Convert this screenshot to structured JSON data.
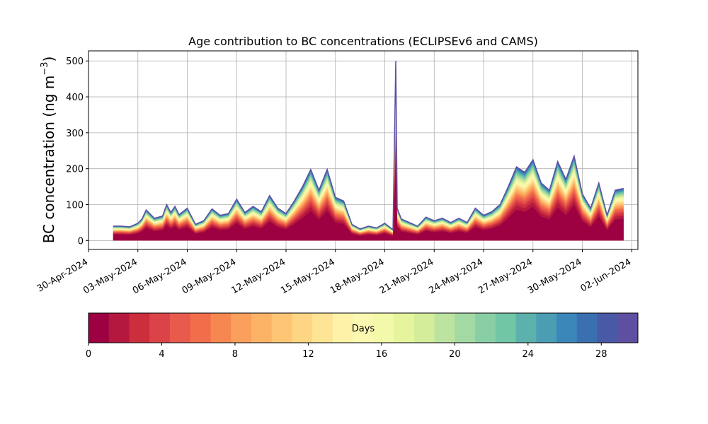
{
  "chart_data": {
    "type": "area",
    "title": "Age contribution to BC concentrations (ECLIPSEv6 and CAMS)",
    "ylabel": "BC concentration (ng m",
    "ylabel_sup": "−3",
    "ylabel_close": ")",
    "xlabel": "",
    "ylim": [
      -25,
      528
    ],
    "xlim": [
      "2024-04-30T00:00",
      "2024-06-02T09:00"
    ],
    "yticks": [
      0,
      100,
      200,
      300,
      400,
      500
    ],
    "xticks": [
      "30-Apr-2024",
      "03-May-2024",
      "06-May-2024",
      "09-May-2024",
      "12-May-2024",
      "15-May-2024",
      "18-May-2024",
      "21-May-2024",
      "24-May-2024",
      "27-May-2024",
      "30-May-2024",
      "02-Jun-2024"
    ],
    "xtick_dates": [
      "2024-04-30",
      "2024-05-03",
      "2024-05-06",
      "2024-05-09",
      "2024-05-12",
      "2024-05-15",
      "2024-05-18",
      "2024-05-21",
      "2024-05-24",
      "2024-05-27",
      "2024-05-30",
      "2024-06-02"
    ],
    "grid": true,
    "stacked_by": "age in days (0–30), colour scale Spectral",
    "total": {
      "x": [
        "2024-05-01T12:00",
        "2024-05-02T00:00",
        "2024-05-02T12:00",
        "2024-05-03T00:00",
        "2024-05-03T06:00",
        "2024-05-03T12:00",
        "2024-05-04T00:00",
        "2024-05-04T12:00",
        "2024-05-04T18:00",
        "2024-05-05T00:00",
        "2024-05-05T06:00",
        "2024-05-05T12:00",
        "2024-05-06T00:00",
        "2024-05-06T12:00",
        "2024-05-07T00:00",
        "2024-05-07T12:00",
        "2024-05-08T00:00",
        "2024-05-08T12:00",
        "2024-05-09T00:00",
        "2024-05-09T12:00",
        "2024-05-10T00:00",
        "2024-05-10T12:00",
        "2024-05-11T00:00",
        "2024-05-11T12:00",
        "2024-05-12T00:00",
        "2024-05-12T12:00",
        "2024-05-13T00:00",
        "2024-05-13T12:00",
        "2024-05-14T00:00",
        "2024-05-14T12:00",
        "2024-05-15T00:00",
        "2024-05-15T12:00",
        "2024-05-16T00:00",
        "2024-05-16T12:00",
        "2024-05-17T00:00",
        "2024-05-17T12:00",
        "2024-05-18T00:00",
        "2024-05-18T12:00",
        "2024-05-18T16:00",
        "2024-05-18T18:00",
        "2024-05-18T20:00",
        "2024-05-19T00:00",
        "2024-05-19T12:00",
        "2024-05-20T00:00",
        "2024-05-20T12:00",
        "2024-05-21T00:00",
        "2024-05-21T12:00",
        "2024-05-22T00:00",
        "2024-05-22T12:00",
        "2024-05-23T00:00",
        "2024-05-23T12:00",
        "2024-05-24T00:00",
        "2024-05-24T12:00",
        "2024-05-25T00:00",
        "2024-05-25T12:00",
        "2024-05-26T00:00",
        "2024-05-26T12:00",
        "2024-05-27T00:00",
        "2024-05-27T12:00",
        "2024-05-28T00:00",
        "2024-05-28T12:00",
        "2024-05-29T00:00",
        "2024-05-29T12:00",
        "2024-05-30T00:00",
        "2024-05-30T12:00",
        "2024-05-31T00:00",
        "2024-05-31T12:00",
        "2024-06-01T00:00",
        "2024-06-01T12:00"
      ],
      "values": [
        40,
        40,
        38,
        48,
        60,
        85,
        62,
        68,
        100,
        78,
        95,
        72,
        90,
        45,
        55,
        88,
        70,
        75,
        115,
        78,
        95,
        80,
        125,
        90,
        75,
        110,
        150,
        198,
        140,
        198,
        120,
        110,
        45,
        32,
        40,
        35,
        48,
        30,
        500,
        90,
        80,
        60,
        50,
        40,
        65,
        55,
        62,
        50,
        62,
        50,
        90,
        70,
        80,
        100,
        150,
        205,
        190,
        225,
        160,
        140,
        220,
        170,
        235,
        130,
        90,
        160,
        70,
        140,
        145
      ]
    },
    "colorbar": {
      "label": "Days",
      "min": 0,
      "max": 30,
      "ticks": [
        0,
        4,
        8,
        12,
        16,
        20,
        24,
        28
      ],
      "colors": [
        "#9e0142",
        "#b5183f",
        "#cc2e3c",
        "#dc4348",
        "#e85b4c",
        "#f26d4a",
        "#f68750",
        "#fa9f5c",
        "#fdb365",
        "#fdc574",
        "#fed683",
        "#fee595",
        "#fef2a9",
        "#fbf8b1",
        "#f2f9a8",
        "#e6f49e",
        "#d4ed9b",
        "#bde3a1",
        "#a3daa4",
        "#89cfa5",
        "#71c6a5",
        "#5db1ac",
        "#4b9db3",
        "#3b87ba",
        "#3a70b0",
        "#4859a6",
        "#5e4fa2"
      ]
    }
  }
}
